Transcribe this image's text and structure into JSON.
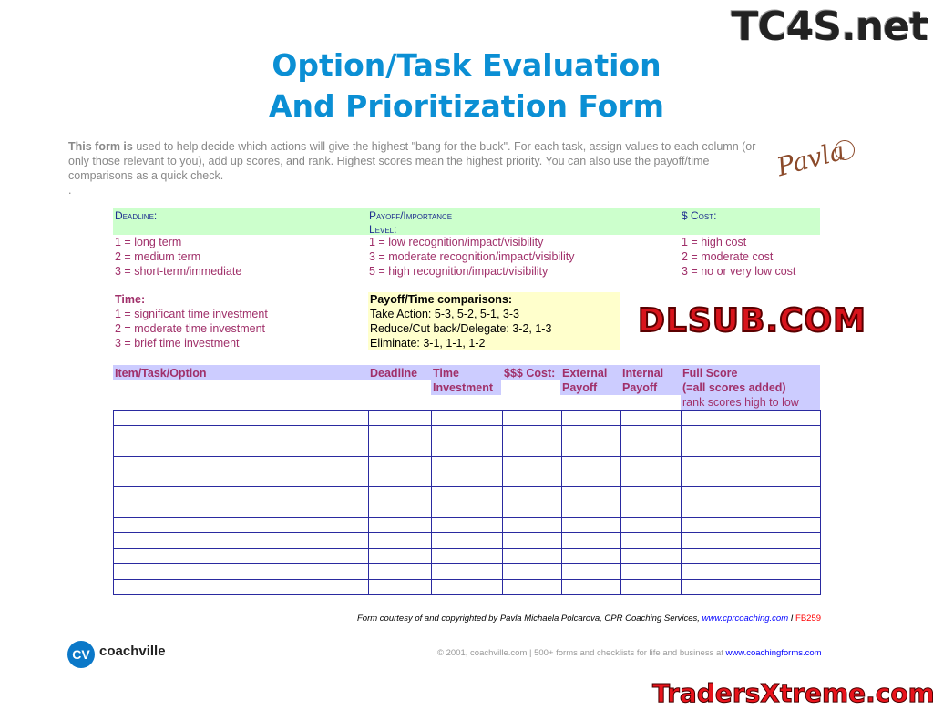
{
  "title_line1": "Option/Task Evaluation",
  "title_line2": "And Prioritization Form",
  "intro_bold": "This form is",
  "intro_text": " used to help decide which actions will give the highest \"bang for the buck\".  For each task, assign values to each column (or only those relevant to you), add up scores, and rank.  Highest scores mean the highest priority.  You can also use the payoff/time comparisons as a quick check.",
  "intro_dot": ".",
  "signature": "Pavla",
  "deadline": {
    "heading": "Deadline:",
    "items": [
      "1 = long term",
      "2 = medium term",
      "3 = short-term/immediate"
    ]
  },
  "payoff": {
    "heading1": "Payoff/Importance",
    "heading2": "Level:",
    "items": [
      "1 = low recognition/impact/visibility",
      "3 = moderate recognition/impact/visibility",
      "5 = high recognition/impact/visibility"
    ]
  },
  "cost": {
    "heading": "$ Cost:",
    "items": [
      "1 = high cost",
      "2 = moderate cost",
      "3 = no or very low cost"
    ]
  },
  "time": {
    "heading": "Time:",
    "items": [
      "1 = significant time investment",
      "2 = moderate time investment",
      "3 = brief time investment"
    ]
  },
  "comparisons": {
    "heading": "Payoff/Time comparisons:",
    "items": [
      "Take Action: 5-3, 5-2, 5-1, 3-3",
      "Reduce/Cut back/Delegate: 3-2, 1-3",
      "Eliminate: 3-1, 1-1, 1-2"
    ]
  },
  "columns": {
    "item": "Item/Task/Option",
    "deadline": "Deadline",
    "time1": "Time",
    "time2": "Investment",
    "cost": "$$$ Cost:",
    "ext1": "External",
    "ext2": "Payoff",
    "int1": "Internal",
    "int2": "Payoff",
    "full1": "Full Score",
    "full2": "(=all scores added)",
    "full3": "rank scores high to low"
  },
  "footer": {
    "courtesy": "Form courtesy of and copyrighted by Pavla Michaela Polcarova, CPR Coaching Services, ",
    "courtesy_link": "www.cprcoaching.com",
    "separator": " I ",
    "form_code": "FB259",
    "copyright": "© 2001, coachville.com | 500+ forms and checklists for life and business at ",
    "copyright_link": "www.coachingforms.com",
    "logo_badge": "CV",
    "logo_text": "coachville"
  },
  "watermarks": {
    "top_right": "TC4S.net",
    "middle": "DLSUB.COM",
    "bottom_right": "TradersXtreme.com"
  },
  "colors": {
    "title": "#0b8fd4",
    "accent_text": "#a0306a",
    "green_band": "#ccffcc",
    "yellow_band": "#ffffcc",
    "lavender_band": "#ccccff",
    "grid_line": "#2a2aa0",
    "form_code": "#ff0000"
  },
  "table_rows": 12
}
